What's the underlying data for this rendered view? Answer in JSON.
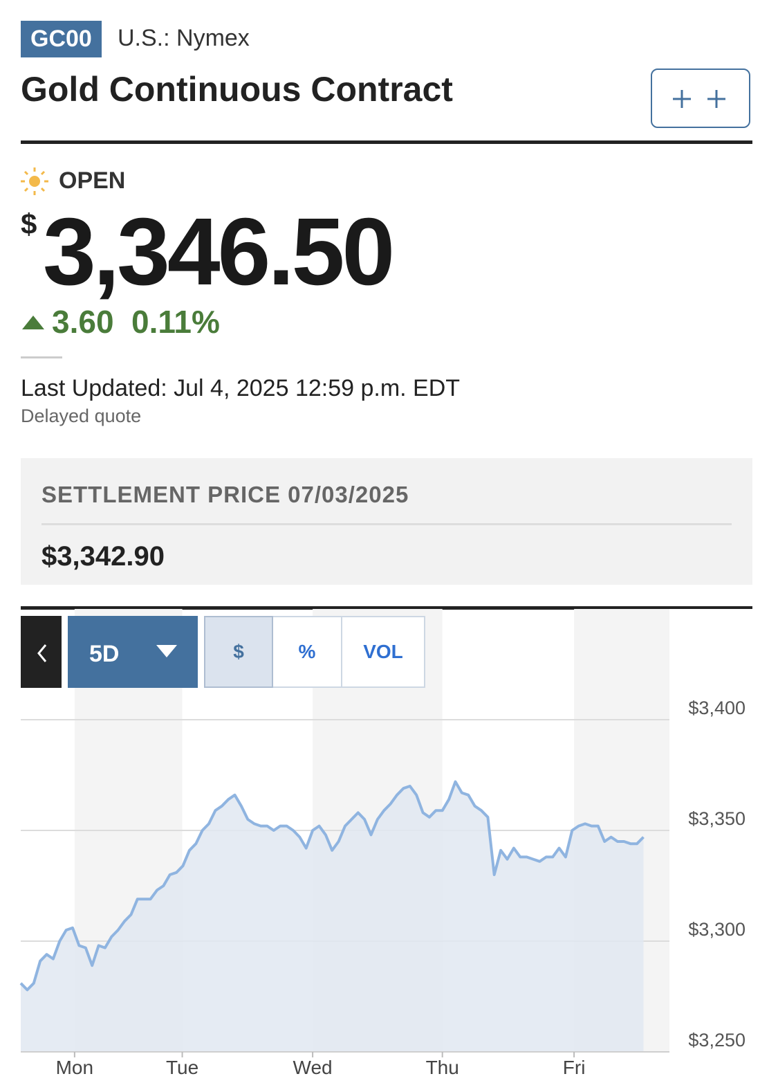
{
  "header": {
    "symbol": "GC00",
    "exchange": "U.S.: Nymex",
    "title": "Gold Continuous Contract"
  },
  "quote": {
    "status": "OPEN",
    "currency": "$",
    "price": "3,346.50",
    "change": "3.60",
    "change_percent": "0.11%",
    "last_updated": "Last Updated: Jul 4, 2025 12:59 p.m. EDT",
    "note": "Delayed quote"
  },
  "settlement": {
    "label": "SETTLEMENT PRICE 07/03/2025",
    "price": "$3,342.90"
  },
  "controls": {
    "range": "5D",
    "options": [
      "$",
      "%",
      "VOL"
    ]
  },
  "chart_data": {
    "type": "area",
    "color": "#8fb4e0",
    "fill": "#e1e8f1",
    "values": [
      3281,
      3278,
      3281,
      3291,
      3294,
      3292,
      3300,
      3305,
      3306,
      3298,
      3297,
      3289,
      3298,
      3297,
      3302,
      3305,
      3309,
      3312,
      3319,
      3319,
      3319,
      3323,
      3325,
      3330,
      3331,
      3334,
      3341,
      3344,
      3350,
      3353,
      3359,
      3361,
      3364,
      3366,
      3361,
      3355,
      3353,
      3352,
      3352,
      3350,
      3352,
      3352,
      3350,
      3347,
      3342,
      3350,
      3352,
      3348,
      3341,
      3345,
      3352,
      3355,
      3358,
      3355,
      3348,
      3355,
      3359,
      3362,
      3366,
      3369,
      3370,
      3366,
      3358,
      3356,
      3359,
      3359,
      3364,
      3372,
      3367,
      3366,
      3361,
      3359,
      3356,
      3330,
      3341,
      3337,
      3342,
      3338,
      3338,
      3337,
      3336,
      3338,
      3338,
      3342,
      3338,
      3350,
      3352,
      3353,
      3352,
      3352,
      3345,
      3347,
      3345,
      3345,
      3344,
      3344,
      3347
    ],
    "xlim": [
      0,
      100
    ],
    "xticks": [
      {
        "value": 8.3,
        "label": "Mon"
      },
      {
        "value": 24.9,
        "label": "Tue"
      },
      {
        "value": 45,
        "label": "Wed"
      },
      {
        "value": 65,
        "label": "Thu"
      },
      {
        "value": 85.3,
        "label": "Fri"
      }
    ],
    "ylim": [
      3250,
      3450
    ],
    "yticks": [
      {
        "value": 3250,
        "label": "$3,250"
      },
      {
        "value": 3300,
        "label": "$3,300"
      },
      {
        "value": 3350,
        "label": "$3,350"
      },
      {
        "value": 3400,
        "label": "$3,400"
      }
    ],
    "grid": true
  }
}
